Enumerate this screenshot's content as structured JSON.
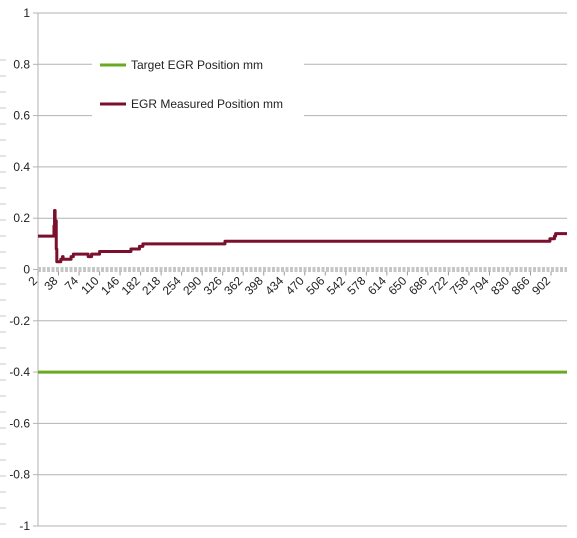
{
  "chart_data": {
    "type": "line",
    "title": "",
    "xlabel": "",
    "ylabel": "",
    "ylim": [
      -1,
      1
    ],
    "yticks": [
      -1,
      -0.8,
      -0.6,
      -0.4,
      -0.2,
      0,
      0.2,
      0.4,
      0.6,
      0.8,
      1
    ],
    "ytick_labels": [
      "-1",
      "-0.8",
      "-0.6",
      "-0.4",
      "-0.2",
      "0",
      "0.2",
      "0.4",
      "0.6",
      "0.8",
      "1"
    ],
    "xlim": [
      2,
      930
    ],
    "xtick_labels": [
      "2",
      "38",
      "74",
      "110",
      "146",
      "182",
      "218",
      "254",
      "290",
      "326",
      "362",
      "398",
      "434",
      "470",
      "506",
      "542",
      "578",
      "614",
      "650",
      "686",
      "722",
      "758",
      "794",
      "830",
      "866",
      "902"
    ],
    "grid": "horizontal",
    "legend_position": "top-left",
    "series": [
      {
        "name": "Target EGR Position mm",
        "color": "#6aaa23",
        "x": [
          2,
          930
        ],
        "y": [
          -0.4,
          -0.4
        ]
      },
      {
        "name": "EGR Measured Position mm",
        "color": "#7a0f2e",
        "x": [
          2,
          28,
          30,
          31,
          32,
          33,
          34,
          35,
          36,
          42,
          45,
          46,
          60,
          62,
          64,
          80,
          90,
          96,
          106,
          110,
          140,
          158,
          165,
          170,
          180,
          186,
          190,
          300,
          330,
          500,
          700,
          880,
          900,
          908,
          910,
          930
        ],
        "y": [
          0.13,
          0.13,
          0.17,
          0.23,
          0.14,
          0.19,
          0.08,
          0.03,
          0.03,
          0.04,
          0.05,
          0.04,
          0.05,
          0.05,
          0.06,
          0.06,
          0.05,
          0.06,
          0.06,
          0.07,
          0.07,
          0.07,
          0.08,
          0.08,
          0.09,
          0.1,
          0.1,
          0.1,
          0.11,
          0.11,
          0.11,
          0.11,
          0.12,
          0.13,
          0.14,
          0.14
        ]
      }
    ]
  }
}
